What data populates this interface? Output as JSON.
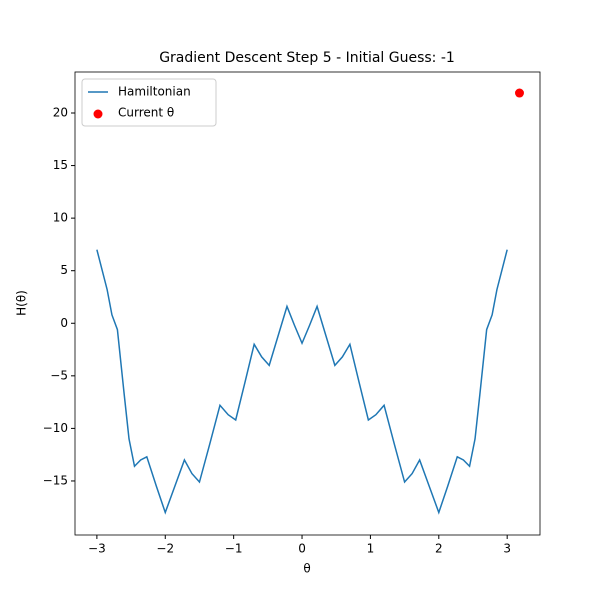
{
  "chart_data": {
    "type": "line",
    "title": "Gradient Descent Step 5 - Initial Guess: -1",
    "x_label": "θ",
    "y_label": "H(θ)",
    "xlim": [
      -3.32,
      3.48
    ],
    "ylim": [
      -20.14,
      23.9
    ],
    "xticks": [
      {
        "value": -3,
        "label": "−3"
      },
      {
        "value": -2,
        "label": "−2"
      },
      {
        "value": -1,
        "label": "−1"
      },
      0,
      1,
      2,
      3
    ],
    "yticks": [
      {
        "value": -15,
        "label": "−15"
      },
      {
        "value": -10,
        "label": "−10"
      },
      {
        "value": -5,
        "label": "−5"
      },
      0,
      5,
      10,
      15,
      20
    ],
    "legend": "upper left",
    "series": [
      {
        "name": "Hamiltonian",
        "type": "line",
        "color": "#1f77b4",
        "x": [
          -3,
          -2.85,
          -2.78,
          -2.7,
          -2.6,
          -2.53,
          -2.45,
          -2.36,
          -2.27,
          -2.13,
          -2.0,
          -1.86,
          -1.72,
          -1.61,
          -1.5,
          -1.35,
          -1.2,
          -1.08,
          -0.97,
          -0.83,
          -0.7,
          -0.59,
          -0.48,
          -0.35,
          -0.22,
          -0.11,
          0,
          0.11,
          0.22,
          0.35,
          0.48,
          0.59,
          0.7,
          0.83,
          0.97,
          1.08,
          1.2,
          1.35,
          1.5,
          1.61,
          1.72,
          1.86,
          2.0,
          2.13,
          2.27,
          2.36,
          2.45,
          2.53,
          2.6,
          2.7,
          2.78,
          2.85,
          3
        ],
        "values": [
          7.0,
          3.2,
          0.8,
          -0.6,
          -6.8,
          -11.0,
          -13.6,
          -13.0,
          -12.7,
          -15.5,
          -18.0,
          -15.5,
          -13.0,
          -14.3,
          -15.1,
          -11.5,
          -7.8,
          -8.7,
          -9.2,
          -5.5,
          -2.0,
          -3.2,
          -4.0,
          -1.2,
          1.6,
          -0.2,
          -1.9,
          -0.2,
          1.6,
          -1.2,
          -4.0,
          -3.2,
          -2.0,
          -5.5,
          -9.2,
          -8.7,
          -7.8,
          -11.5,
          -15.1,
          -14.3,
          -13.0,
          -15.5,
          -18.0,
          -15.5,
          -12.7,
          -13.0,
          -13.6,
          -11.0,
          -6.8,
          -0.6,
          0.8,
          3.2,
          7.0
        ]
      },
      {
        "name": "Current θ",
        "type": "scatter",
        "color": "#ff0000",
        "x": [
          3.18
        ],
        "values": [
          21.9
        ]
      }
    ]
  }
}
